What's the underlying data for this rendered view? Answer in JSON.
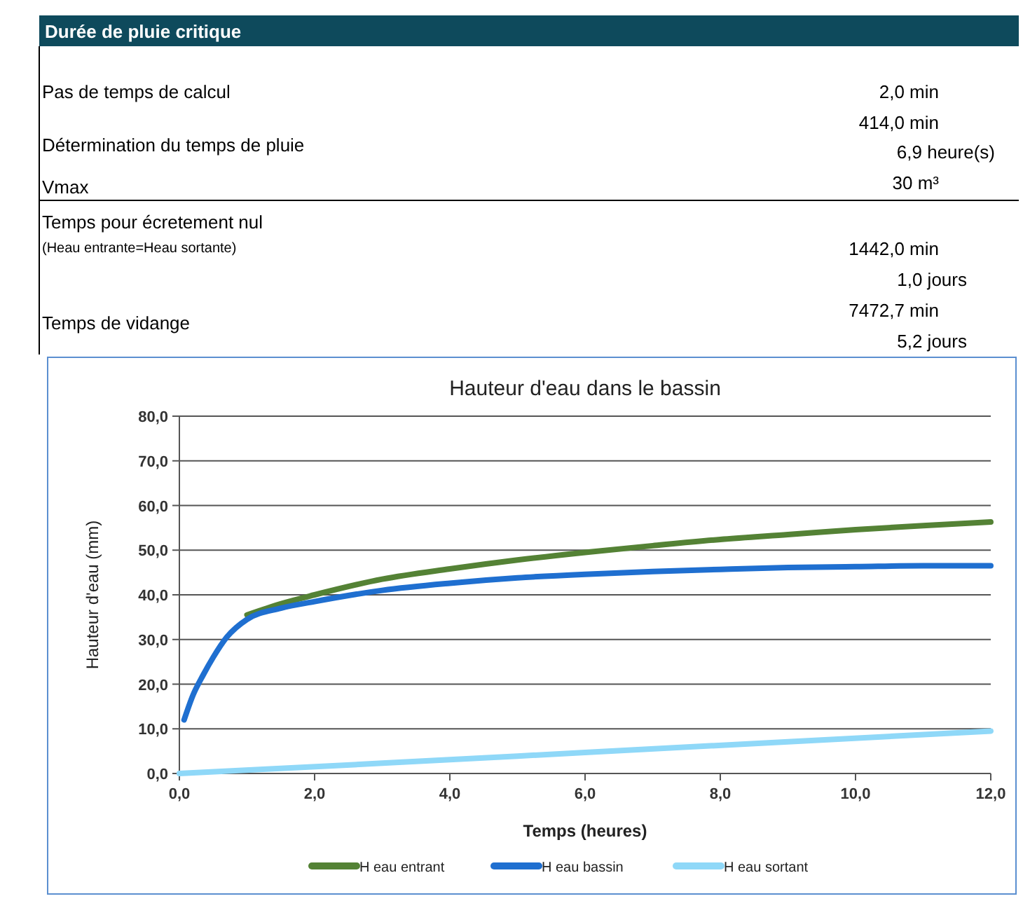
{
  "chart_data": [
    {
      "type": "other",
      "title": "Durée de pluie critique",
      "annotations": [
        "Pas de temps de calcul",
        "2,0 min",
        "Détermination du temps de pluie",
        "414,0 min",
        "6,9 heure(s)",
        "Vmax",
        "30 m³",
        "Temps pour écretement nul",
        "(Heau entrante=Heau sortante)",
        "1442,0 min",
        "1,0 jours",
        "Temps de vidange",
        "7472,7 min",
        "5,2 jours"
      ]
    },
    {
      "type": "line",
      "title": "Hauteur d'eau dans le bassin",
      "xlabel": "Temps (heures)",
      "ylabel": "Hauteur d'eau (mm)",
      "xlim": [
        0,
        12
      ],
      "ylim": [
        0,
        80
      ],
      "xticks": [
        {
          "value": 0,
          "label": "0,0"
        },
        {
          "value": 2,
          "label": "2,0"
        },
        {
          "value": 4,
          "label": "4,0"
        },
        {
          "value": 6,
          "label": "6,0"
        },
        {
          "value": 8,
          "label": "8,0"
        },
        {
          "value": 10,
          "label": "10,0"
        },
        {
          "value": 12,
          "label": "12,0"
        }
      ],
      "yticks": [
        {
          "value": 0,
          "label": "0,0"
        },
        {
          "value": 10,
          "label": "10,0"
        },
        {
          "value": 20,
          "label": "20,0"
        },
        {
          "value": 30,
          "label": "30,0"
        },
        {
          "value": 40,
          "label": "40,0"
        },
        {
          "value": 50,
          "label": "50,0"
        },
        {
          "value": 60,
          "label": "60,0"
        },
        {
          "value": 70,
          "label": "70,0"
        },
        {
          "value": 80,
          "label": "80,0"
        }
      ],
      "grid": "y",
      "legend": "bottom",
      "marker": "none",
      "series": [
        {
          "name": "H eau entrant",
          "color": "#548235",
          "x": [
            1,
            1.5,
            2,
            3,
            4,
            5,
            6,
            7,
            8,
            9,
            10,
            11,
            12
          ],
          "values": [
            35.5,
            38,
            40,
            43.5,
            45.8,
            47.8,
            49.5,
            51,
            52.4,
            53.5,
            54.6,
            55.5,
            56.3
          ]
        },
        {
          "name": "H eau bassin",
          "color": "#1f6fd0",
          "x": [
            0.07,
            0.2,
            0.35,
            0.5,
            0.7,
            1,
            1.5,
            2,
            3,
            4,
            5,
            6,
            7,
            8,
            9,
            10,
            11,
            12
          ],
          "values": [
            12,
            17.5,
            22,
            26,
            30.5,
            34.5,
            37,
            38.5,
            41,
            42.6,
            43.8,
            44.6,
            45.2,
            45.7,
            46.1,
            46.3,
            46.5,
            46.5
          ]
        },
        {
          "name": "H eau sortant",
          "color": "#8fd8f8",
          "x": [
            0,
            3,
            6,
            9,
            12
          ],
          "values": [
            0,
            2.3,
            4.7,
            7.1,
            9.5
          ]
        }
      ]
    }
  ]
}
